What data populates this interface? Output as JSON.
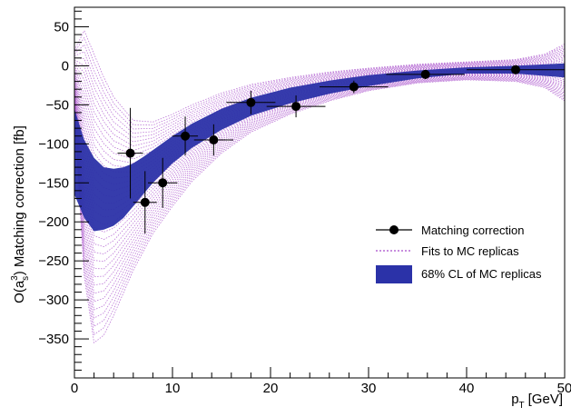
{
  "chart_data": {
    "type": "scatter",
    "xlabel": "p",
    "xlabel_sub": "T",
    "xlabel_unit": "[GeV]",
    "ylabel_pre": "O(a",
    "ylabel_sub": "s",
    "ylabel_sup": "3",
    "ylabel_post": ") Matching correction [fb]",
    "xlim": [
      0,
      50
    ],
    "ylim": [
      -400,
      75
    ],
    "x_ticks": [
      0,
      10,
      20,
      30,
      40,
      50
    ],
    "y_ticks": [
      50,
      0,
      -50,
      -100,
      -150,
      -200,
      -250,
      -300,
      -350
    ],
    "grid": false,
    "legend_position": "right",
    "legend": [
      {
        "label": "Matching correction",
        "style": "marker"
      },
      {
        "label": "Fits to MC replicas",
        "style": "dotted"
      },
      {
        "label": "68% CL of MC replicas",
        "style": "box"
      }
    ],
    "colors": {
      "band": "#2b32a8",
      "replicas": "#a64ac9",
      "points": "#000000"
    },
    "points": [
      {
        "x": 5.7,
        "y": -112,
        "xerr": 1.3,
        "yerr": 58
      },
      {
        "x": 7.2,
        "y": -175,
        "xerr": 1.2,
        "yerr": 40
      },
      {
        "x": 9.0,
        "y": -150,
        "xerr": 1.5,
        "yerr": 32
      },
      {
        "x": 11.3,
        "y": -90,
        "xerr": 1.3,
        "yerr": 25
      },
      {
        "x": 14.2,
        "y": -95,
        "xerr": 2.0,
        "yerr": 20
      },
      {
        "x": 18.0,
        "y": -47,
        "xerr": 2.5,
        "yerr": 15
      },
      {
        "x": 22.6,
        "y": -52,
        "xerr": 3.0,
        "yerr": 14
      },
      {
        "x": 28.5,
        "y": -27,
        "xerr": 3.5,
        "yerr": 8
      },
      {
        "x": 35.8,
        "y": -11,
        "xerr": 4.0,
        "yerr": 6
      },
      {
        "x": 45.0,
        "y": -5,
        "xerr": 5.0,
        "yerr": 5
      }
    ],
    "band": {
      "x": [
        0,
        1,
        2,
        3,
        4,
        5,
        6,
        7,
        8,
        10,
        12,
        15,
        18,
        22,
        26,
        30,
        35,
        40,
        45,
        50
      ],
      "lower": [
        -165,
        -195,
        -212,
        -210,
        -205,
        -195,
        -180,
        -165,
        -150,
        -125,
        -105,
        -82,
        -64,
        -48,
        -36,
        -26,
        -16,
        -10,
        -10,
        -15
      ],
      "upper": [
        -55,
        -95,
        -118,
        -130,
        -132,
        -130,
        -125,
        -117,
        -108,
        -90,
        -74,
        -55,
        -41,
        -28,
        -19,
        -12,
        -6,
        -2,
        0,
        3
      ]
    },
    "replica_envelope": {
      "x": [
        0,
        1,
        2,
        3,
        4,
        6,
        8,
        10,
        12,
        15,
        18,
        22,
        26,
        30,
        35,
        40,
        45,
        48,
        50
      ],
      "upper": [
        20,
        45,
        15,
        -15,
        -40,
        -70,
        -72,
        -62,
        -50,
        -35,
        -24,
        -15,
        -8,
        -3,
        2,
        5,
        8,
        15,
        28
      ],
      "lower": [
        -65,
        -270,
        -355,
        -345,
        -320,
        -262,
        -215,
        -180,
        -148,
        -112,
        -85,
        -62,
        -45,
        -32,
        -22,
        -18,
        -20,
        -28,
        -45
      ]
    }
  }
}
